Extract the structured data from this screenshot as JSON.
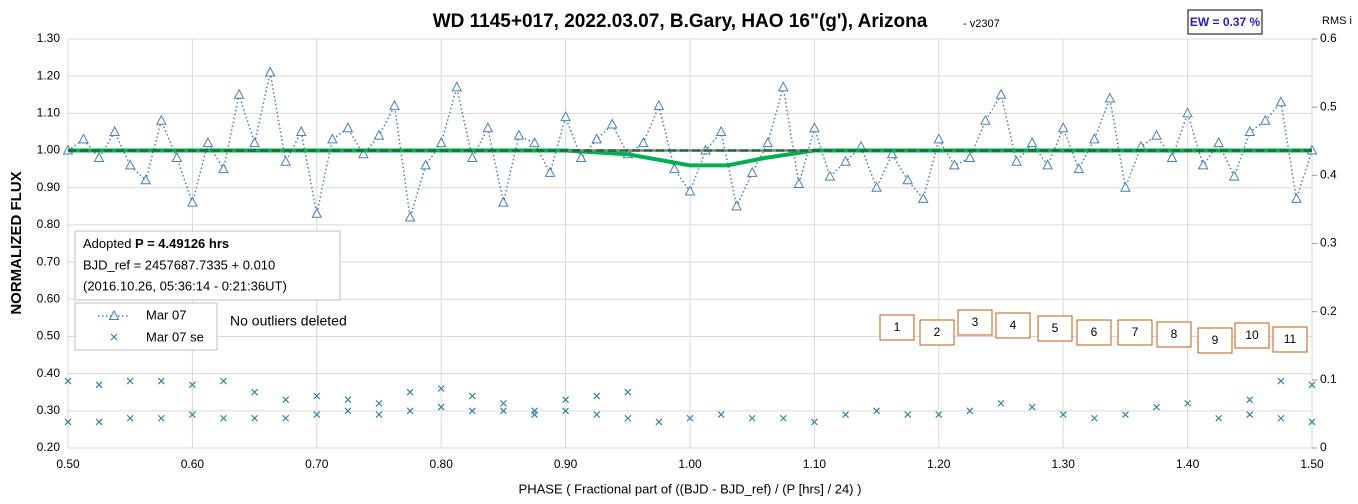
{
  "chart_data": {
    "type": "scatter",
    "title": "WD 1145+017, 2022.03.07, B.Gary, HAO 16\"(g'), Arizona",
    "version": "- v2307",
    "ew_label": "EW = 0.37 %",
    "y2_label": "RMS i",
    "ylabel": "NORMALIZED FLUX",
    "xlabel": "PHASE ( Fractional part of ((BJD - BJD_ref) / (P [hrs] / 24) )",
    "info": {
      "prefix": "Adopted ",
      "period": "P = 4.49126 hrs",
      "line2": "BJD_ref = 2457687.7335 + 0.010",
      "line3": "(2016.10.26, 05:36:14 - 0:21:36UT)"
    },
    "note": "No outliers deleted",
    "boxes": [
      "1",
      "2",
      "3",
      "4",
      "5",
      "6",
      "7",
      "8",
      "9",
      "10",
      "11"
    ],
    "xlim": [
      0.5,
      1.5
    ],
    "xticks": [
      {
        "value": 0.5,
        "label": "0.50"
      },
      {
        "value": 0.6,
        "label": "0.60"
      },
      {
        "value": 0.7,
        "label": "0.70"
      },
      {
        "value": 0.8,
        "label": "0.80"
      },
      {
        "value": 0.9,
        "label": "0.90"
      },
      {
        "value": 1.0,
        "label": "1.00"
      },
      {
        "value": 1.1,
        "label": "1.10"
      },
      {
        "value": 1.2,
        "label": "1.20"
      },
      {
        "value": 1.3,
        "label": "1.30"
      },
      {
        "value": 1.4,
        "label": "1.40"
      },
      {
        "value": 1.5,
        "label": "1.50"
      }
    ],
    "ylim": [
      0.2,
      1.3
    ],
    "yticks": [
      {
        "value": 0.2,
        "label": "0.20"
      },
      {
        "value": 0.3,
        "label": "0.30"
      },
      {
        "value": 0.4,
        "label": "0.40"
      },
      {
        "value": 0.5,
        "label": "0.50"
      },
      {
        "value": 0.6,
        "label": "0.60"
      },
      {
        "value": 0.7,
        "label": "0.70"
      },
      {
        "value": 0.8,
        "label": "0.80"
      },
      {
        "value": 0.9,
        "label": "0.90"
      },
      {
        "value": 1.0,
        "label": "1.00"
      },
      {
        "value": 1.1,
        "label": "1.10"
      },
      {
        "value": 1.2,
        "label": "1.20"
      },
      {
        "value": 1.3,
        "label": "1.30"
      }
    ],
    "y2lim": [
      0,
      0.6
    ],
    "y2ticks": [
      0,
      0.1,
      0.2,
      0.3,
      0.4,
      0.5,
      0.6
    ],
    "grid": true,
    "series": [
      {
        "name": "Mar 07",
        "color": "#4a7ebb",
        "marker": "triangle",
        "x": [
          0.5,
          0.5125,
          0.525,
          0.5375,
          0.55,
          0.5625,
          0.575,
          0.5875,
          0.6,
          0.6125,
          0.625,
          0.6375,
          0.65,
          0.6625,
          0.675,
          0.6875,
          0.7,
          0.7125,
          0.725,
          0.7375,
          0.75,
          0.7625,
          0.775,
          0.7875,
          0.8,
          0.8125,
          0.825,
          0.8375,
          0.85,
          0.8625,
          0.875,
          0.8875,
          0.9,
          0.9125,
          0.925,
          0.9375,
          0.95,
          0.9625,
          0.975,
          0.9875,
          1.0,
          1.0125,
          1.025,
          1.0375,
          1.05,
          1.0625,
          1.075,
          1.0875,
          1.1,
          1.1125,
          1.125,
          1.1375,
          1.15,
          1.1625,
          1.175,
          1.1875,
          1.2,
          1.2125,
          1.225,
          1.2375,
          1.25,
          1.2625,
          1.275,
          1.2875,
          1.3,
          1.3125,
          1.325,
          1.3375,
          1.35,
          1.3625,
          1.375,
          1.3875,
          1.4,
          1.4125,
          1.425,
          1.4375,
          1.45,
          1.4625,
          1.475,
          1.4875,
          1.5
        ],
        "values": [
          1.0,
          1.03,
          0.98,
          1.05,
          0.96,
          0.92,
          1.08,
          0.98,
          0.86,
          1.02,
          0.95,
          1.15,
          1.02,
          1.21,
          0.97,
          1.05,
          0.83,
          1.03,
          1.06,
          0.99,
          1.04,
          1.12,
          0.82,
          0.96,
          1.02,
          1.17,
          0.98,
          1.06,
          0.86,
          1.04,
          1.02,
          0.94,
          1.09,
          0.98,
          1.03,
          1.07,
          0.99,
          1.02,
          1.12,
          0.95,
          0.89,
          1.0,
          1.05,
          0.85,
          0.94,
          1.02,
          1.17,
          0.91,
          1.06,
          0.93,
          0.97,
          1.01,
          0.9,
          0.99,
          0.92,
          0.87,
          1.03,
          0.96,
          0.98,
          1.08,
          1.15,
          0.97,
          1.02,
          0.96,
          1.06,
          0.95,
          1.03,
          1.14,
          0.9,
          1.01,
          1.04,
          0.98,
          1.1,
          0.96,
          1.02,
          0.93,
          1.05,
          1.08,
          1.13,
          0.87,
          1.0
        ]
      },
      {
        "name": "Mar 07 se",
        "color": "#31859c",
        "marker": "x",
        "x": [
          0.5,
          0.525,
          0.55,
          0.575,
          0.6,
          0.625,
          0.65,
          0.675,
          0.7,
          0.725,
          0.75,
          0.775,
          0.8,
          0.825,
          0.85,
          0.875,
          0.9,
          0.925,
          0.95,
          0.975,
          1.0,
          1.025,
          1.05,
          1.075,
          1.1,
          1.125,
          1.15,
          1.175,
          1.2,
          1.225,
          1.25,
          1.275,
          1.3,
          1.325,
          1.35,
          1.375,
          1.4,
          1.425,
          1.45,
          1.475,
          1.5,
          0.5,
          0.525,
          0.55,
          0.575,
          0.6,
          0.625,
          0.65,
          0.675,
          0.7,
          0.725,
          0.75,
          0.775,
          0.8,
          0.825,
          0.85,
          0.875,
          0.9,
          0.925,
          0.95,
          1.45,
          1.475,
          1.5
        ],
        "values": [
          0.27,
          0.27,
          0.28,
          0.28,
          0.29,
          0.28,
          0.28,
          0.28,
          0.29,
          0.3,
          0.29,
          0.3,
          0.31,
          0.3,
          0.3,
          0.29,
          0.3,
          0.29,
          0.28,
          0.27,
          0.28,
          0.29,
          0.28,
          0.28,
          0.27,
          0.29,
          0.3,
          0.29,
          0.29,
          0.3,
          0.32,
          0.31,
          0.29,
          0.28,
          0.29,
          0.31,
          0.32,
          0.28,
          0.29,
          0.28,
          0.27,
          0.38,
          0.37,
          0.38,
          0.38,
          0.37,
          0.38,
          0.35,
          0.33,
          0.34,
          0.33,
          0.32,
          0.35,
          0.36,
          0.34,
          0.32,
          0.3,
          0.33,
          0.34,
          0.35,
          0.33,
          0.38,
          0.37
        ]
      },
      {
        "color": "#00b050",
        "marker": "line",
        "x": [
          0.5,
          0.9,
          0.95,
          1.0,
          1.03,
          1.06,
          1.1,
          1.5
        ],
        "values": [
          1.0,
          1.0,
          0.99,
          0.96,
          0.96,
          0.98,
          1.0,
          1.0
        ]
      },
      {
        "color": "#7f7f7f",
        "marker": "dash",
        "x": [
          0.9,
          1.1
        ],
        "values": [
          1.0,
          1.0
        ]
      },
      {
        "color": "#1e6b34",
        "marker": "dash",
        "x": [
          0.5,
          1.5
        ],
        "values": [
          1.0,
          1.0
        ]
      }
    ]
  }
}
